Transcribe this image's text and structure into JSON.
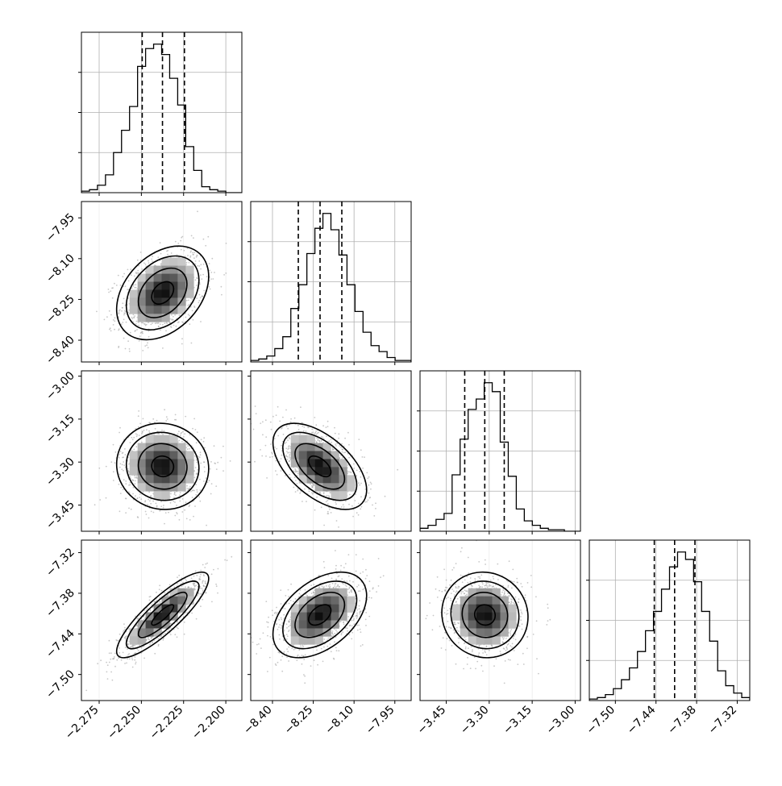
{
  "chart_data": {
    "type": "corner",
    "colors": {
      "axes": "#000000",
      "grid": "#b0b0b0",
      "scatter": "#9a9a9a",
      "histogram": "#000000",
      "density_low": "#ffffff",
      "density_high": "#000000"
    },
    "grid": true,
    "quantile_lines": "dashed",
    "parameters": [
      {
        "ticks": [
          "-2.275",
          "-2.250",
          "-2.225",
          "-2.200"
        ],
        "tick_values": [
          -2.275,
          -2.25,
          -2.225,
          -2.2
        ],
        "range": [
          -2.2855,
          -2.1905
        ],
        "quantiles": [
          -2.2495,
          -2.2375,
          -2.2245
        ],
        "mean": -2.2374,
        "sd": 0.0125,
        "histogram": [
          0.01,
          0.02,
          0.05,
          0.12,
          0.27,
          0.42,
          0.58,
          0.85,
          0.97,
          1.0,
          0.93,
          0.77,
          0.59,
          0.31,
          0.15,
          0.04,
          0.02,
          0.01,
          0.0,
          0.0
        ]
      },
      {
        "ticks": [
          "-8.40",
          "-8.25",
          "-8.10",
          "-7.95"
        ],
        "tick_values": [
          -8.4,
          -8.25,
          -8.1,
          -7.95
        ],
        "range": [
          -8.48,
          -7.89
        ],
        "quantiles": [
          -8.305,
          -8.225,
          -8.145
        ],
        "mean": -8.226,
        "sd": 0.079,
        "histogram": [
          0.01,
          0.02,
          0.04,
          0.09,
          0.17,
          0.36,
          0.52,
          0.73,
          0.9,
          1.0,
          0.89,
          0.72,
          0.52,
          0.34,
          0.2,
          0.11,
          0.07,
          0.03,
          0.01,
          0.01
        ]
      },
      {
        "ticks": [
          "-3.45",
          "-3.30",
          "-3.15",
          "-3.00"
        ],
        "tick_values": [
          -3.45,
          -3.3,
          -3.15,
          -3.0
        ],
        "range": [
          -3.5415,
          -2.9815
        ],
        "quantiles": [
          -3.3855,
          -3.3155,
          -3.2475
        ],
        "mean": -3.315,
        "sd": 0.069,
        "histogram": [
          0.02,
          0.04,
          0.08,
          0.12,
          0.38,
          0.62,
          0.82,
          0.89,
          1.0,
          0.94,
          0.6,
          0.37,
          0.15,
          0.07,
          0.04,
          0.02,
          0.01,
          0.01,
          0.0,
          0.0
        ]
      },
      {
        "ticks": [
          "-7.50",
          "-7.44",
          "-7.38",
          "-7.32"
        ],
        "tick_values": [
          -7.5,
          -7.44,
          -7.38,
          -7.32
        ],
        "range": [
          -7.5385,
          -7.3015
        ],
        "quantiles": [
          -7.4425,
          -7.4125,
          -7.3825
        ],
        "mean": -7.412,
        "sd": 0.029,
        "histogram": [
          0.01,
          0.02,
          0.04,
          0.08,
          0.14,
          0.22,
          0.33,
          0.47,
          0.6,
          0.75,
          0.9,
          1.0,
          0.95,
          0.8,
          0.6,
          0.4,
          0.2,
          0.1,
          0.05,
          0.02
        ]
      }
    ],
    "correlations": [
      {
        "row": 1,
        "col": 0,
        "r": 0.35
      },
      {
        "row": 2,
        "col": 0,
        "r": -0.05
      },
      {
        "row": 2,
        "col": 1,
        "r": -0.55
      },
      {
        "row": 3,
        "col": 0,
        "r": 0.85
      },
      {
        "row": 3,
        "col": 1,
        "r": 0.45
      },
      {
        "row": 3,
        "col": 2,
        "r": -0.05
      }
    ]
  }
}
